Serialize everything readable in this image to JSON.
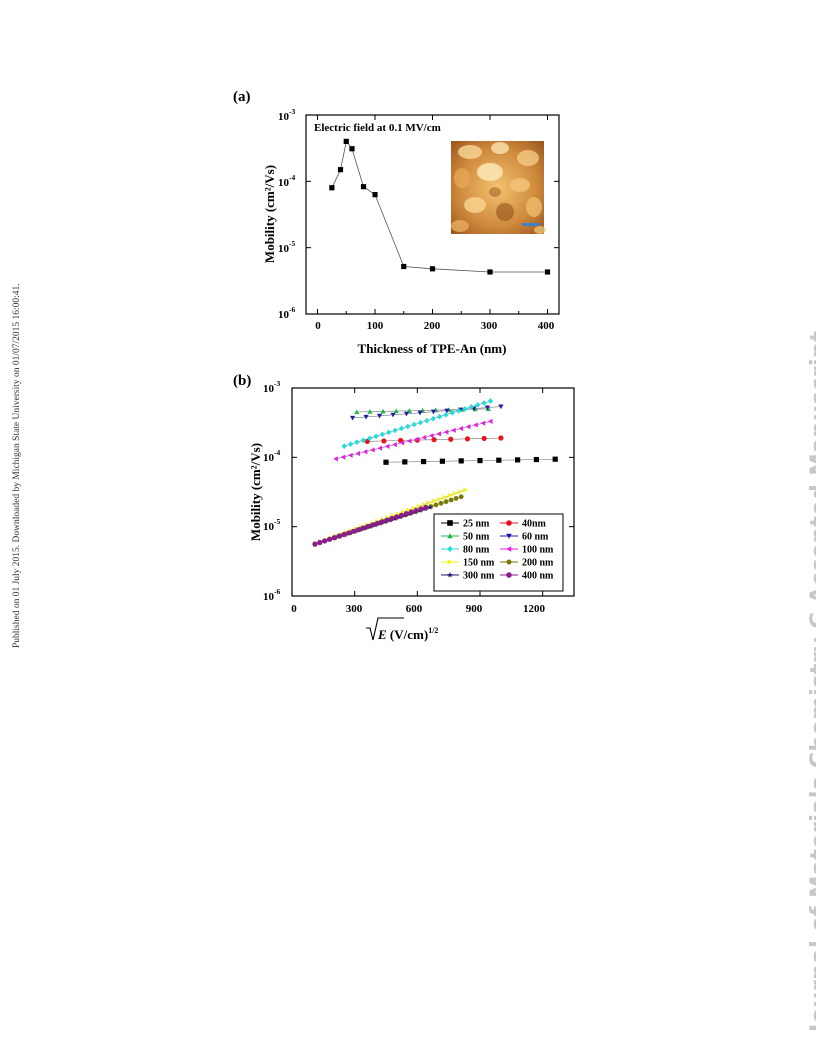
{
  "side_note": "Published on 01 July 2015. Downloaded by Michigan State University on 01/07/2015 16:00:41.",
  "watermark": "Journal of Materials Chemistry C Accepted Manuscript",
  "chart_data": [
    {
      "panel_label": "(a)",
      "type": "line",
      "xlabel": "Thickness of TPE-An (nm)",
      "ylabel": "Mobility (cm²/Vs)",
      "annotation": "Electric field at 0.1 MV/cm",
      "x_scale": "linear",
      "y_scale": "log",
      "xlim": [
        -20,
        420
      ],
      "ylim": [
        1e-06,
        0.001
      ],
      "x_ticks": [
        "0",
        "100",
        "200",
        "300",
        "400"
      ],
      "y_ticks": [
        "10",
        "10",
        "10",
        "10"
      ],
      "y_tick_exponents": [
        "-6",
        "-5",
        "-4",
        "-3"
      ],
      "inset": "AFM image",
      "series": [
        {
          "x": [
            25,
            40,
            50,
            60,
            80,
            100,
            150,
            200,
            300,
            400
          ],
          "y": [
            8e-05,
            0.00015,
            0.0004,
            0.00031,
            8.3e-05,
            6.3e-05,
            5.2e-06,
            4.8e-06,
            4.3e-06,
            4.3e-06
          ]
        }
      ]
    },
    {
      "panel_label": "(b)",
      "type": "scatter",
      "xlabel": "√E (V/cm)",
      "xlabel_symbol": "E",
      "xlabel_unit": " (V/cm)",
      "xlabel_exponent": "1/2",
      "ylabel": "Mobility (cm²/Vs)",
      "x_scale": "linear",
      "y_scale": "log",
      "xlim": [
        0,
        1350
      ],
      "ylim": [
        1e-06,
        0.001
      ],
      "x_ticks": [
        "0",
        "300",
        "600",
        "900",
        "1200"
      ],
      "y_ticks": [
        "10",
        "10",
        "10",
        "10"
      ],
      "y_tick_exponents": [
        "-6",
        "-5",
        "-4",
        "-3"
      ],
      "series": [
        {
          "name": "25 nm",
          "color": "#000000",
          "marker": "square",
          "x_start": 450,
          "x_end": 1260,
          "y_start": 8.5e-05,
          "y_end": 9.4e-05,
          "n": 10
        },
        {
          "name": "40nm",
          "color": "#e8121b",
          "marker": "circle",
          "x_start": 360,
          "x_end": 1000,
          "y_start": 0.00017,
          "y_end": 0.00019,
          "n": 9
        },
        {
          "name": "50 nm",
          "color": "#21b84a",
          "marker": "triangle-up",
          "x_start": 310,
          "x_end": 940,
          "y_start": 0.00045,
          "y_end": 0.0005,
          "n": 11
        },
        {
          "name": "60 nm",
          "color": "#1f1fa6",
          "marker": "triangle-down",
          "x_start": 290,
          "x_end": 1000,
          "y_start": 0.00037,
          "y_end": 0.00054,
          "n": 12
        },
        {
          "name": "80 nm",
          "color": "#1fdede",
          "marker": "diamond",
          "x_start": 250,
          "x_end": 950,
          "y_start": 0.000145,
          "y_end": 0.00065,
          "n": 24
        },
        {
          "name": "100 nm",
          "color": "#e81ee8",
          "marker": "triangle-left",
          "x_start": 210,
          "x_end": 950,
          "y_start": 9.5e-05,
          "y_end": 0.00033,
          "n": 22
        },
        {
          "name": "150 nm",
          "color": "#f4f41a",
          "marker": "triangle-right",
          "x_start": 110,
          "x_end": 830,
          "y_start": 5.7e-06,
          "y_end": 3.4e-05,
          "n": 30
        },
        {
          "name": "200 nm",
          "color": "#7a7a00",
          "marker": "hexagon",
          "x_start": 110,
          "x_end": 810,
          "y_start": 5.6e-06,
          "y_end": 2.7e-05,
          "n": 30
        },
        {
          "name": "300 nm",
          "color": "#1b1b7a",
          "marker": "star",
          "x_start": 110,
          "x_end": 660,
          "y_start": 5.6e-06,
          "y_end": 1.9e-05,
          "n": 24
        },
        {
          "name": "400 nm",
          "color": "#8b1c8b",
          "marker": "circle",
          "x_start": 110,
          "x_end": 640,
          "y_start": 5.6e-06,
          "y_end": 1.9e-05,
          "n": 24
        }
      ]
    }
  ]
}
